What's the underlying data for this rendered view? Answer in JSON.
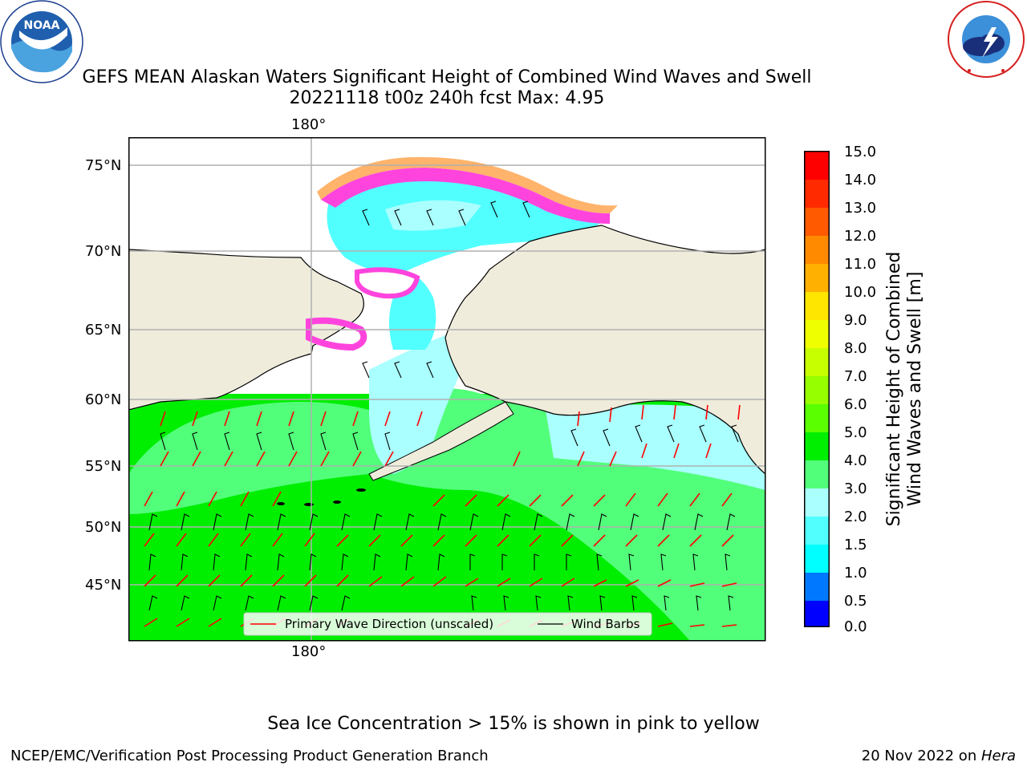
{
  "header": {
    "title_line1": "GEFS MEAN Alaskan Waters Significant Height of Combined Wind Waves and Swell",
    "title_line2": "20221118 t00z 240h fcst   Max: 4.95"
  },
  "logos": {
    "noaa": {
      "text": "NOAA",
      "ring_text": "NATIONAL OCEANIC AND ATMOSPHERIC ADMINISTRATION · U.S. DEPARTMENT OF COMMERCE"
    },
    "nws": {
      "ring_text": "NATIONAL WEATHER SERVICE"
    }
  },
  "map": {
    "lon_top_label": "180°",
    "lon_bottom_label": "180°",
    "lat_labels": [
      "75°N",
      "70°N",
      "65°N",
      "60°N",
      "55°N",
      "50°N",
      "45°N"
    ],
    "legend": {
      "wave_direction": "Primary Wave Direction (unscaled)",
      "wind_barbs": "Wind Barbs"
    },
    "colors": {
      "land": "#efecdc",
      "wave_arrow": "#ff0000",
      "wind_barb": "#000000",
      "grid": "#b0b0b0"
    }
  },
  "colorbar": {
    "title_line1": "Significant Height of Combined",
    "title_line2": "Wind Waves and Swell [m]",
    "ticks": [
      "15.0",
      "14.0",
      "13.0",
      "12.0",
      "11.0",
      "10.0",
      "9.0",
      "8.0",
      "7.0",
      "6.0",
      "5.0",
      "4.0",
      "3.0",
      "2.0",
      "1.5",
      "1.0",
      "0.5",
      "0.0"
    ],
    "colors": [
      "#ff0000",
      "#ff2a00",
      "#ff5a00",
      "#ff8a00",
      "#ffb000",
      "#ffe600",
      "#f0ff00",
      "#c8ff00",
      "#96ff00",
      "#5aff00",
      "#00ee00",
      "#52ff7a",
      "#aaffff",
      "#52ffff",
      "#00ffff",
      "#0078ff",
      "#0000ff"
    ]
  },
  "notes": {
    "sea_ice": "Sea Ice Concentration > 15% is shown in pink to yellow"
  },
  "footer": {
    "left": "NCEP/EMC/Verification Post Processing Product Generation Branch",
    "right_date": "20 Nov 2022 on ",
    "right_host": "Hera"
  }
}
